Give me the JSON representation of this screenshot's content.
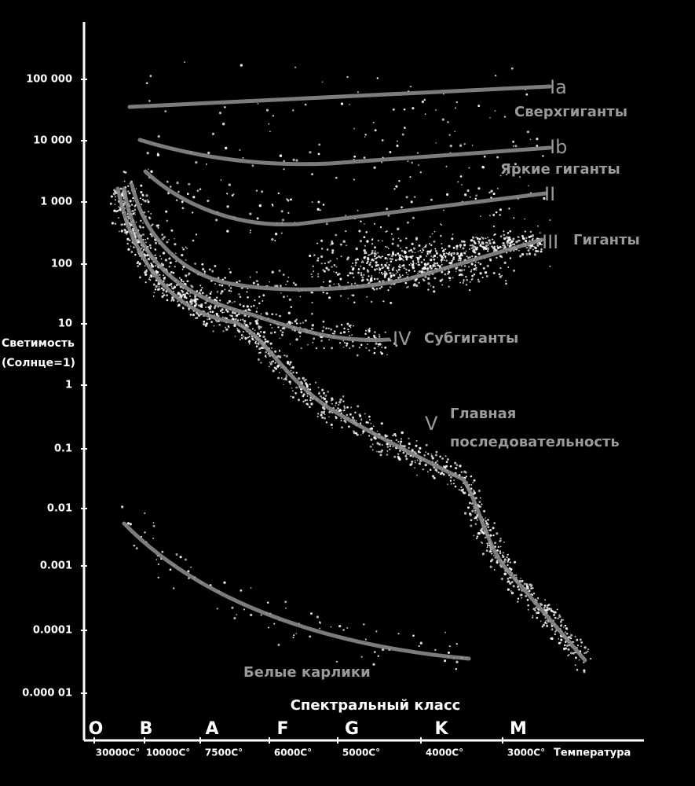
{
  "y_axis": {
    "label": [
      "Светимость",
      "(Солнце=1)"
    ],
    "ticks": [
      "100 000",
      "10 000",
      "1 000",
      "100",
      "10",
      "1",
      "0.1",
      "0.01",
      "0.001",
      "0.0001",
      "0.000 01"
    ]
  },
  "x_axis": {
    "label": "Спектральный класс",
    "classes": [
      "O",
      "B",
      "A",
      "F",
      "G",
      "K",
      "M"
    ],
    "temperatures": [
      "30000C°",
      "10000C°",
      "7500C°",
      "6000C°",
      "5000C°",
      "4000C°",
      "3000C°"
    ],
    "temperature_label": "Температура"
  },
  "regions": [
    {
      "numeral": "Ia",
      "label": [
        "Сверхгиганты"
      ]
    },
    {
      "numeral": "Ib",
      "label": [
        "Яркие гиганты"
      ]
    },
    {
      "numeral": "II"
    },
    {
      "numeral": "III",
      "label": [
        "Гиганты"
      ]
    },
    {
      "numeral": "IV",
      "label": [
        "Субгиганты"
      ]
    },
    {
      "numeral": "V",
      "label": [
        "Главная",
        "последовательность"
      ]
    },
    {
      "label": [
        "Белые карлики"
      ]
    }
  ]
}
